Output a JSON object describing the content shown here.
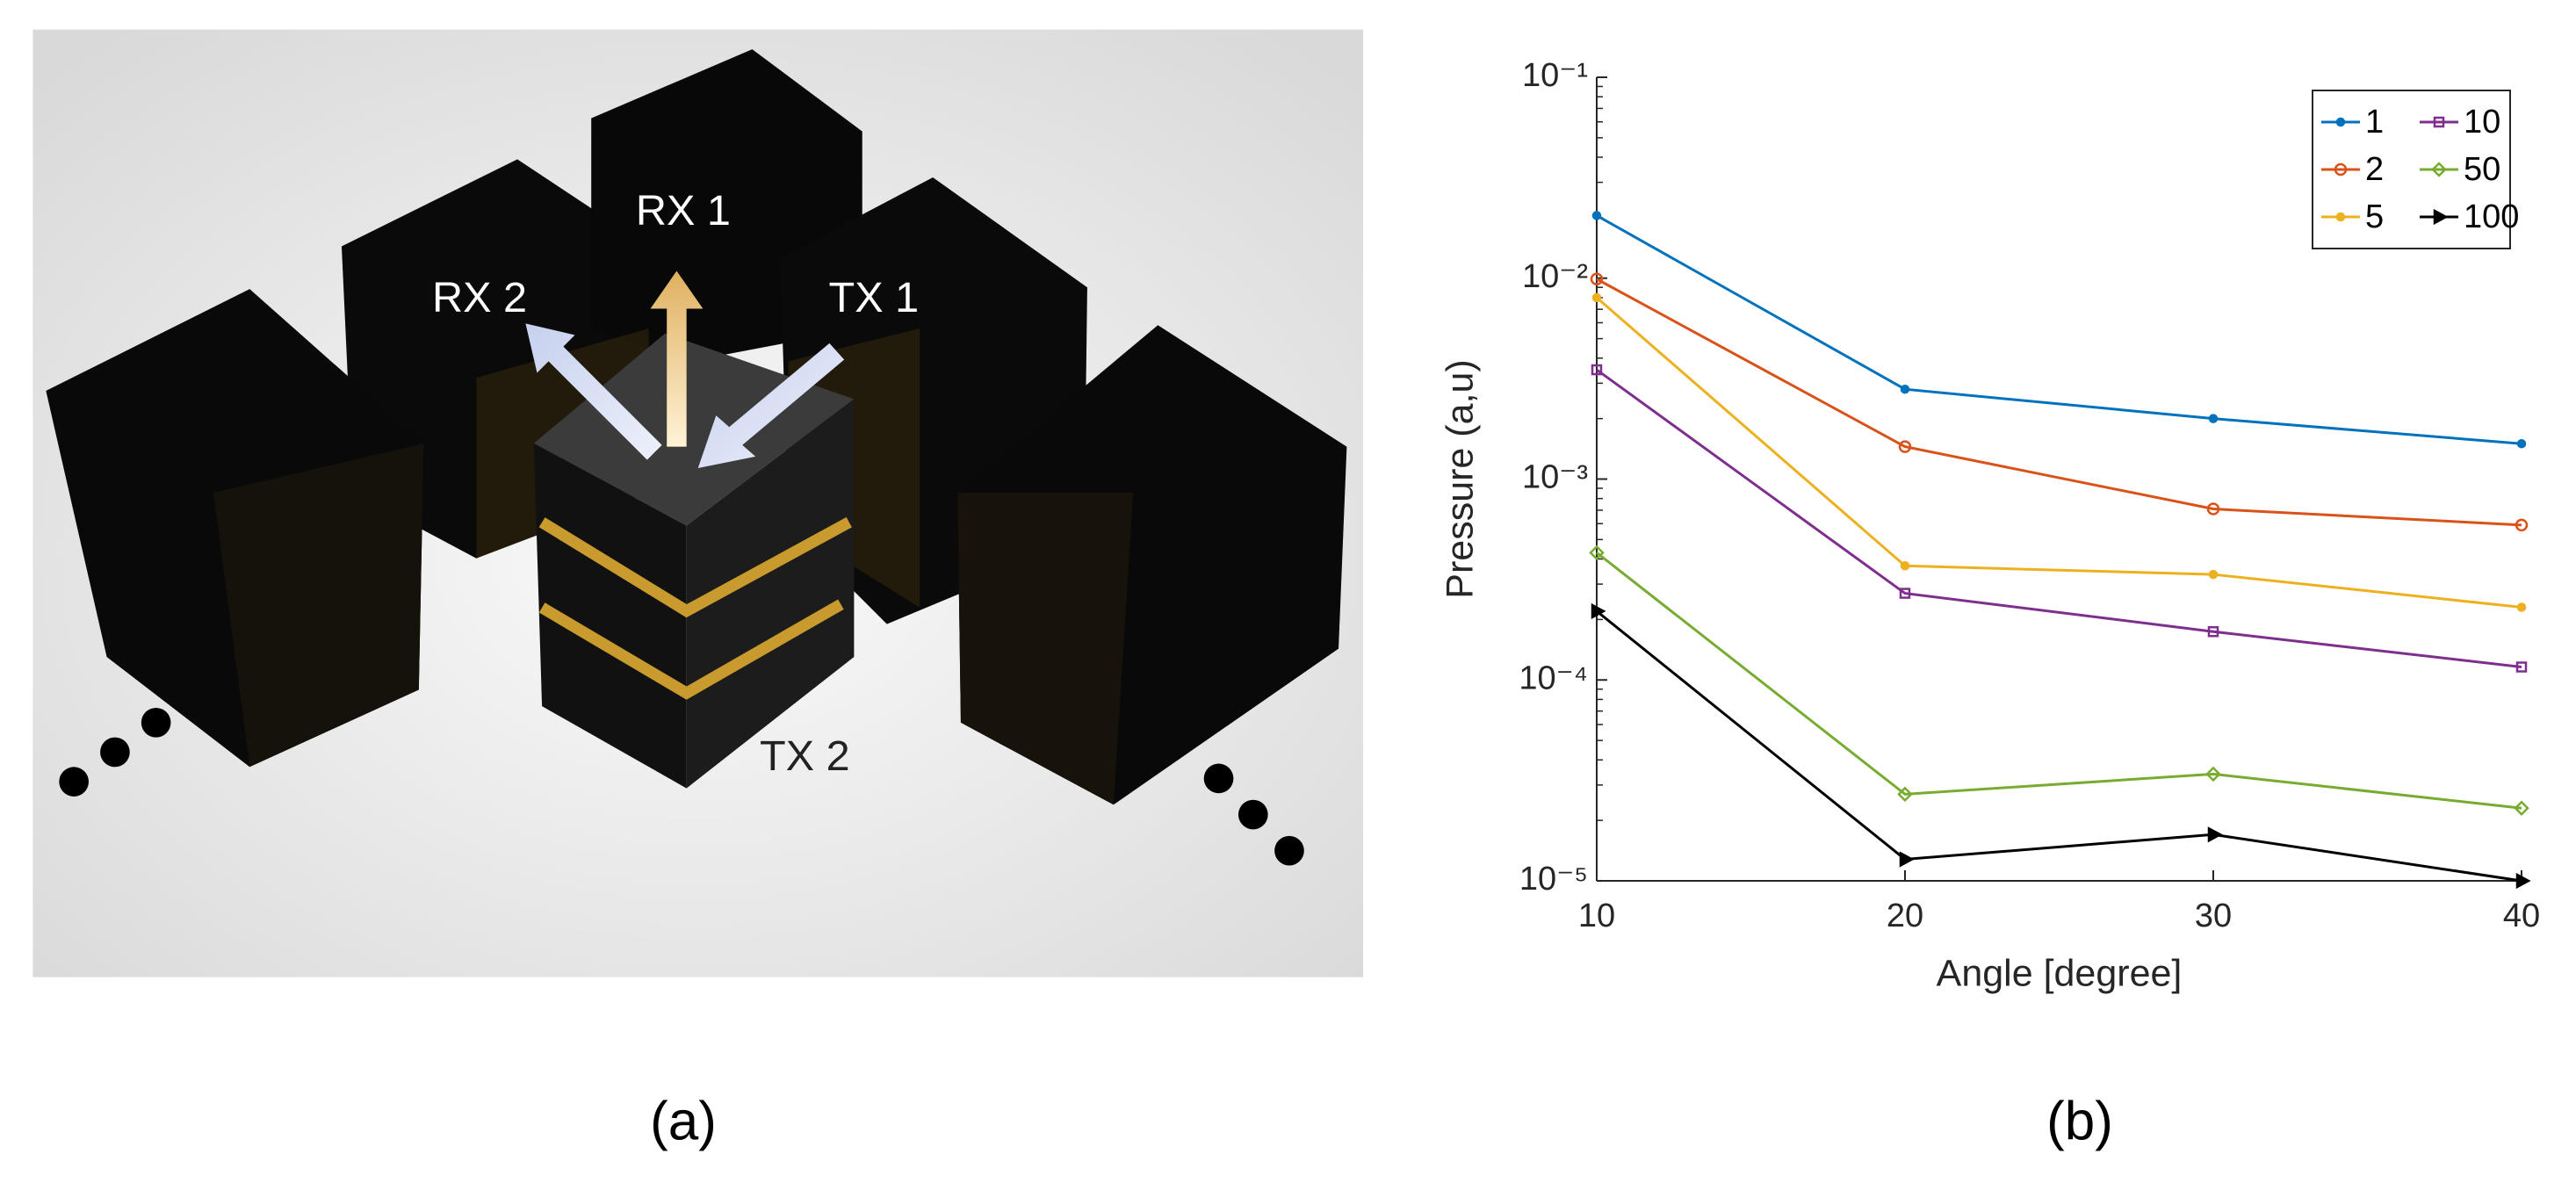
{
  "figure": {
    "panel_a": {
      "labels": [
        "RX 1",
        "RX 2",
        "TX 1",
        "TX 2"
      ]
    },
    "captions": [
      "(a)",
      "(b)"
    ]
  },
  "chart_data": {
    "type": "line",
    "x_label": "Angle [degree]",
    "y_label": "Pressure (a,u)",
    "x": [
      10,
      20,
      30,
      40
    ],
    "xlim": [
      10,
      40
    ],
    "xticks": [
      10,
      20,
      30,
      40
    ],
    "ylim": [
      1e-05,
      0.1
    ],
    "y_scale": "log",
    "yticks": [
      {
        "value": 1e-05,
        "label": "10⁻⁵"
      },
      {
        "value": 0.0001,
        "label": "10⁻⁴"
      },
      {
        "value": 0.001,
        "label": "10⁻³"
      },
      {
        "value": 0.01,
        "label": "10⁻²"
      },
      {
        "value": 0.1,
        "label": "10⁻¹"
      }
    ],
    "grid": false,
    "legend": "northeast",
    "series": [
      {
        "name": "1",
        "color": "#0072bd",
        "marker": "point",
        "values": [
          0.0205,
          0.0028,
          0.002,
          0.0015
        ]
      },
      {
        "name": "2",
        "color": "#d95319",
        "marker": "circle",
        "values": [
          0.0099,
          0.00145,
          0.00071,
          0.00059
        ]
      },
      {
        "name": "5",
        "color": "#edb120",
        "marker": "point",
        "values": [
          0.008,
          0.00037,
          0.000335,
          0.00023
        ]
      },
      {
        "name": "10",
        "color": "#7e2f8e",
        "marker": "square",
        "values": [
          0.0035,
          0.00027,
          0.000174,
          0.000116
        ]
      },
      {
        "name": "50",
        "color": "#77ac30",
        "marker": "diamond",
        "values": [
          0.00043,
          2.7e-05,
          3.4e-05,
          2.3e-05
        ]
      },
      {
        "name": "100",
        "color": "#000000",
        "marker": "triangle-right",
        "values": [
          0.00022,
          1.28e-05,
          1.7e-05,
          1e-05
        ]
      }
    ]
  }
}
